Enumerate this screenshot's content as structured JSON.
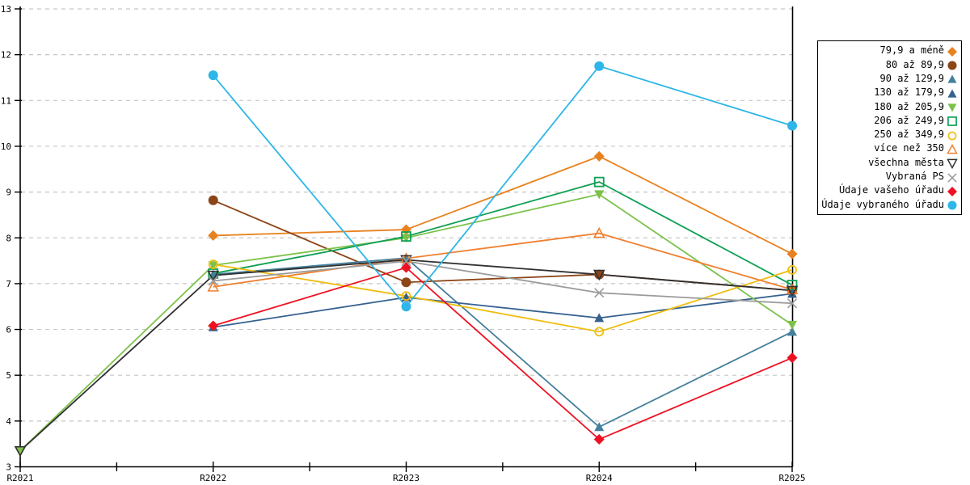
{
  "chart_data": {
    "type": "line",
    "categories": [
      "R2021",
      "R2022",
      "R2023",
      "R2024",
      "R2025"
    ],
    "ylim": [
      3,
      13
    ],
    "y_tick_labels": [
      "3",
      "4",
      "5",
      "6",
      "7",
      "8",
      "9",
      "10",
      "11",
      "12",
      "13"
    ],
    "grid": "horizontal-dashed",
    "grid_color": "#c6c6c6",
    "axis_color": "#000000",
    "legend_position": "right",
    "series": [
      {
        "name": "79,9 a méně",
        "color": "#E8821E",
        "marker": "diamond",
        "values": [
          null,
          8.05,
          8.18,
          9.78,
          7.65
        ]
      },
      {
        "name": "80 až 89,9",
        "color": "#8C4517",
        "marker": "circle",
        "values": [
          null,
          8.82,
          7.03,
          7.2,
          6.85
        ]
      },
      {
        "name": "90 až 129,9",
        "color": "#44809B",
        "marker": "triangle-up",
        "values": [
          null,
          7.2,
          7.56,
          3.87,
          5.95
        ]
      },
      {
        "name": "130 až 179,9",
        "color": "#35618F",
        "marker": "triangle-up",
        "values": [
          null,
          6.05,
          6.7,
          6.25,
          6.78
        ]
      },
      {
        "name": "180 až 205,9",
        "color": "#7CC24A",
        "marker": "triangle-down",
        "values": [
          3.35,
          7.4,
          8.0,
          8.95,
          6.1
        ]
      },
      {
        "name": "206 až 249,9",
        "color": "#10A054",
        "marker": "square-open",
        "values": [
          null,
          7.22,
          8.03,
          9.22,
          6.97
        ]
      },
      {
        "name": "250 až 349,9",
        "color": "#EFBE10",
        "marker": "circle-open",
        "values": [
          null,
          7.42,
          6.73,
          5.95,
          7.3
        ]
      },
      {
        "name": "více než 350",
        "color": "#F08030",
        "marker": "triangle-up-open",
        "values": [
          null,
          6.93,
          7.55,
          8.1,
          6.87
        ]
      },
      {
        "name": "všechna města",
        "color": "#303030",
        "marker": "triangle-down-open",
        "values": [
          3.35,
          7.18,
          7.52,
          7.2,
          6.85
        ]
      },
      {
        "name": "Vybraná PS",
        "color": "#9B9B9B",
        "marker": "x",
        "values": [
          null,
          7.06,
          7.49,
          6.8,
          6.57
        ]
      },
      {
        "name": "Údaje vašeho úřadu",
        "color": "#EE1122",
        "marker": "diamond",
        "values": [
          null,
          6.08,
          7.35,
          3.6,
          5.38
        ]
      },
      {
        "name": "Údaje vybraného úřadu",
        "color": "#2EB6E8",
        "marker": "circle",
        "values": [
          null,
          11.55,
          6.5,
          11.75,
          10.45
        ]
      }
    ]
  }
}
